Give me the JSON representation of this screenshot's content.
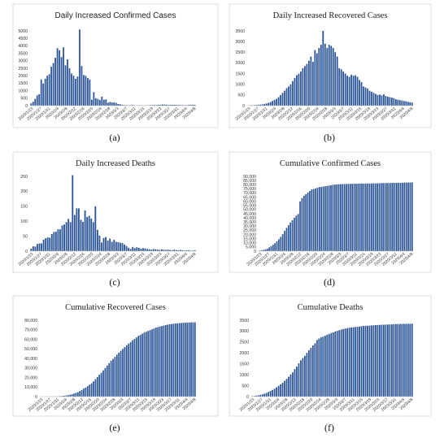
{
  "colors": {
    "bar": "#2c5596"
  },
  "chart_data": [
    {
      "id": "a",
      "type": "bar",
      "title": "Daily Increased Confirmed Cases",
      "caption": "(a)",
      "ylim": [
        0,
        5000
      ],
      "yticks": [
        0,
        250,
        500,
        750,
        1000,
        1250,
        1500,
        1750,
        2000,
        2250,
        2500,
        2750,
        3000,
        3250,
        3500,
        3750,
        4000,
        4250,
        4500,
        4750,
        5000
      ],
      "ytick_labels": [
        "0",
        "",
        "500",
        "",
        "1000",
        "",
        "1500",
        "",
        "2000",
        "",
        "2500",
        "",
        "3000",
        "",
        "3500",
        "",
        "4000",
        "",
        "4500",
        "",
        "5000"
      ],
      "xtick_labels": [
        "2020/1/23",
        "2020/1/27",
        "2020/1/31",
        "2020/2/4",
        "2020/2/8",
        "2020/2/12",
        "2020/2/16",
        "2020/2/20",
        "2020/2/24",
        "2020/2/28",
        "2020/3/3",
        "2020/3/7",
        "2020/3/11",
        "2020/3/15",
        "2020/3/19",
        "2020/3/23",
        "2020/3/27",
        "2020/3/31",
        "2020/4/4",
        "2020/4/8"
      ],
      "values": [
        150,
        260,
        450,
        690,
        770,
        1750,
        1480,
        1800,
        2000,
        2100,
        2600,
        2850,
        3200,
        3850,
        3700,
        3250,
        3900,
        2700,
        3100,
        2500,
        2150,
        2000,
        1800,
        1950,
        5090,
        2650,
        2050,
        2000,
        1850,
        1750,
        400,
        900,
        500,
        450,
        380,
        600,
        400,
        420,
        200,
        250,
        210,
        220,
        190,
        110,
        100,
        50,
        40,
        30,
        25,
        30,
        45,
        25,
        20,
        20,
        30,
        15,
        20,
        25,
        30,
        35,
        40,
        45,
        40,
        50,
        60,
        80,
        70,
        65,
        50,
        60,
        55,
        55,
        50,
        45,
        35,
        40,
        30,
        35,
        50,
        45,
        60,
        55
      ]
    },
    {
      "id": "b",
      "type": "bar",
      "title": "Daily Increased Recovered Cases",
      "caption": "(b)",
      "ylim": [
        0,
        3500
      ],
      "yticks": [
        0,
        250,
        500,
        750,
        1000,
        1250,
        1500,
        1750,
        2000,
        2250,
        2500,
        2750,
        3000,
        3250,
        3500
      ],
      "ytick_labels": [
        "0",
        "",
        "500",
        "",
        "1000",
        "",
        "1500",
        "",
        "2000",
        "",
        "2500",
        "",
        "3000",
        "",
        "3500"
      ],
      "xtick_labels": [
        "2020/1/23",
        "2020/1/27",
        "2020/1/31",
        "2020/2/4",
        "2020/2/8",
        "2020/2/12",
        "2020/2/16",
        "2020/2/20",
        "2020/2/24",
        "2020/2/28",
        "2020/3/3",
        "2020/3/7",
        "2020/3/11",
        "2020/3/15",
        "2020/3/19",
        "2020/3/23",
        "2020/3/27",
        "2020/3/31",
        "2020/4/4",
        "2020/4/8"
      ],
      "values": [
        10,
        15,
        20,
        25,
        30,
        40,
        50,
        60,
        80,
        100,
        130,
        170,
        220,
        270,
        320,
        400,
        500,
        600,
        700,
        820,
        900,
        1000,
        1150,
        1300,
        1430,
        1500,
        1600,
        1750,
        1850,
        1950,
        2100,
        2300,
        2050,
        2600,
        2450,
        2700,
        2850,
        3500,
        2900,
        2700,
        2850,
        2800,
        2700,
        2500,
        2300,
        1750,
        1700,
        1600,
        1500,
        1400,
        1350,
        1450,
        1400,
        1420,
        1350,
        1200,
        1100,
        900,
        850,
        800,
        700,
        650,
        600,
        550,
        500,
        520,
        480,
        530,
        450,
        420,
        400,
        380,
        350,
        300,
        280,
        260,
        240,
        220,
        200,
        180,
        160,
        140
      ]
    },
    {
      "id": "c",
      "type": "bar",
      "title": "Daily Increased Deaths",
      "caption": "(c)",
      "ylim": [
        0,
        250
      ],
      "yticks": [
        0,
        25,
        50,
        75,
        100,
        125,
        150,
        175,
        200,
        225,
        250
      ],
      "ytick_labels": [
        "0",
        "",
        "50",
        "",
        "100",
        "",
        "150",
        "",
        "200",
        "",
        "250"
      ],
      "xtick_labels": [
        "2020/1/23",
        "2020/1/27",
        "2020/1/31",
        "2020/2/4",
        "2020/2/8",
        "2020/2/12",
        "2020/2/16",
        "2020/2/20",
        "2020/2/24",
        "2020/2/28",
        "2020/3/3",
        "2020/3/7",
        "2020/3/11",
        "2020/3/15",
        "2020/3/19",
        "2020/3/23",
        "2020/3/27",
        "2020/3/31",
        "2020/4/4",
        "2020/4/8"
      ],
      "values": [
        8,
        16,
        15,
        24,
        26,
        26,
        38,
        43,
        46,
        45,
        57,
        64,
        65,
        73,
        73,
        86,
        89,
        97,
        108,
        97,
        254,
        121,
        143,
        143,
        105,
        98,
        136,
        114,
        118,
        109,
        97,
        150,
        71,
        52,
        29,
        44,
        47,
        35,
        42,
        31,
        38,
        31,
        30,
        28,
        27,
        22,
        17,
        11,
        7,
        14,
        10,
        13,
        11,
        8,
        10,
        9,
        7,
        6,
        5,
        7,
        6,
        5,
        4,
        6,
        5,
        4,
        5,
        4,
        3,
        5,
        4,
        3,
        4,
        3,
        2,
        3,
        3,
        2,
        2,
        3
      ]
    },
    {
      "id": "d",
      "type": "bar",
      "title": "Cumulative Confirmed Cases",
      "caption": "(d)",
      "ylim": [
        0,
        90000
      ],
      "yticks": [
        0,
        5000,
        10000,
        15000,
        20000,
        25000,
        30000,
        35000,
        40000,
        45000,
        50000,
        55000,
        60000,
        65000,
        70000,
        75000,
        80000,
        85000,
        90000
      ],
      "ytick_labels": [
        "0",
        "5,000",
        "10,000",
        "15,000",
        "20,000",
        "25,000",
        "30,000",
        "35,000",
        "40,000",
        "45,000",
        "50,000",
        "55,000",
        "60,000",
        "65,000",
        "70,000",
        "75,000",
        "80,000",
        "85,000",
        "90,000"
      ],
      "xtick_labels": [
        "2020/1/23",
        "2020/1/27",
        "2020/1/31",
        "2020/2/4",
        "2020/2/8",
        "2020/2/12",
        "2020/2/16",
        "2020/2/20",
        "2020/2/24",
        "2020/2/28",
        "2020/3/3",
        "2020/3/7",
        "2020/3/11",
        "2020/3/15",
        "2020/3/19",
        "2020/3/23",
        "2020/3/27",
        "2020/3/31",
        "2020/4/4",
        "2020/4/8"
      ],
      "values": [
        640,
        920,
        1400,
        2100,
        2900,
        4500,
        6000,
        7700,
        9700,
        11800,
        14400,
        17200,
        20400,
        24300,
        28000,
        31200,
        34500,
        37200,
        40200,
        42700,
        44700,
        59900,
        63900,
        66600,
        68500,
        70500,
        72400,
        74200,
        74700,
        75500,
        76300,
        77000,
        77300,
        77800,
        78100,
        78500,
        78800,
        79300,
        79800,
        80100,
        80200,
        80400,
        80600,
        80700,
        80800,
        80800,
        80900,
        81000,
        81000,
        81100,
        81100,
        81200,
        81200,
        81300,
        81300,
        81400,
        81400,
        81500,
        81500,
        81600,
        81600,
        81700,
        81700,
        81800,
        81900,
        81900,
        82000,
        82000,
        82100,
        82100,
        82200,
        82200,
        82300,
        82300,
        82400,
        82400,
        82500,
        82600,
        82600,
        82700
      ]
    },
    {
      "id": "e",
      "type": "bar",
      "title": "Cumulative Recovered Cases",
      "caption": "(e)",
      "ylim": [
        0,
        80000
      ],
      "yticks": [
        0,
        10000,
        20000,
        30000,
        40000,
        50000,
        60000,
        70000,
        80000
      ],
      "ytick_labels": [
        "0",
        "10,000",
        "20,000",
        "30,000",
        "40,000",
        "50,000",
        "60,000",
        "70,000",
        "80,000"
      ],
      "xtick_labels": [
        "2020/1/23",
        "2020/1/27",
        "2020/1/31",
        "2020/2/4",
        "2020/2/8",
        "2020/2/12",
        "2020/2/16",
        "2020/2/20",
        "2020/2/24",
        "2020/2/28",
        "2020/3/3",
        "2020/3/7",
        "2020/3/11",
        "2020/3/15",
        "2020/3/19",
        "2020/3/23",
        "2020/3/27",
        "2020/3/31",
        "2020/4/4",
        "2020/4/8"
      ],
      "values": [
        30,
        40,
        50,
        60,
        80,
        110,
        130,
        170,
        240,
        330,
        470,
        630,
        850,
        1150,
        1500,
        1950,
        2500,
        3200,
        4000,
        4700,
        5900,
        7000,
        8500,
        9500,
        11000,
        12500,
        14000,
        16000,
        18300,
        20600,
        23000,
        25000,
        27500,
        30000,
        32500,
        35000,
        37600,
        39500,
        41600,
        44000,
        46000,
        48000,
        50000,
        52000,
        53800,
        55500,
        57000,
        59000,
        60500,
        62000,
        63600,
        64600,
        65900,
        67000,
        67800,
        68800,
        69600,
        70500,
        71300,
        72200,
        72800,
        73300,
        73900,
        74400,
        74900,
        75400,
        75700,
        76000,
        76300,
        76600,
        76800,
        77000,
        77100,
        77300,
        77400,
        77500,
        77600,
        77700,
        77800,
        77800
      ]
    },
    {
      "id": "f",
      "type": "bar",
      "title": "Cumulative Deaths",
      "caption": "(f)",
      "ylim": [
        0,
        3500
      ],
      "yticks": [
        0,
        250,
        500,
        750,
        1000,
        1250,
        1500,
        1750,
        2000,
        2250,
        2500,
        2750,
        3000,
        3250,
        3500
      ],
      "ytick_labels": [
        "0",
        "",
        "500",
        "",
        "1000",
        "",
        "1500",
        "",
        "2000",
        "",
        "2500",
        "",
        "3000",
        "",
        "3500"
      ],
      "xtick_labels": [
        "2020/1/23",
        "2020/1/27",
        "2020/1/31",
        "2020/2/4",
        "2020/2/8",
        "2020/2/12",
        "2020/2/16",
        "2020/2/20",
        "2020/2/24",
        "2020/2/28",
        "2020/3/3",
        "2020/3/7",
        "2020/3/11",
        "2020/3/15",
        "2020/3/19",
        "2020/3/23",
        "2020/3/27",
        "2020/3/31",
        "2020/4/4",
        "2020/4/8"
      ],
      "values": [
        18,
        26,
        42,
        56,
        80,
        106,
        132,
        170,
        213,
        259,
        304,
        361,
        425,
        490,
        563,
        636,
        722,
        811,
        908,
        1016,
        1113,
        1259,
        1380,
        1523,
        1665,
        1770,
        1868,
        2004,
        2118,
        2236,
        2345,
        2442,
        2592,
        2663,
        2715,
        2744,
        2788,
        2835,
        2870,
        2912,
        2943,
        2981,
        3012,
        3042,
        3070,
        3097,
        3119,
        3136,
        3158,
        3169,
        3176,
        3189,
        3199,
        3213,
        3226,
        3237,
        3245,
        3249,
        3253,
        3261,
        3270,
        3277,
        3281,
        3287,
        3292,
        3295,
        3300,
        3304,
        3305,
        3312,
        3318,
        3322,
        3326,
        3329,
        3331,
        3333,
        3335,
        3337,
        3339,
        3340
      ]
    }
  ]
}
